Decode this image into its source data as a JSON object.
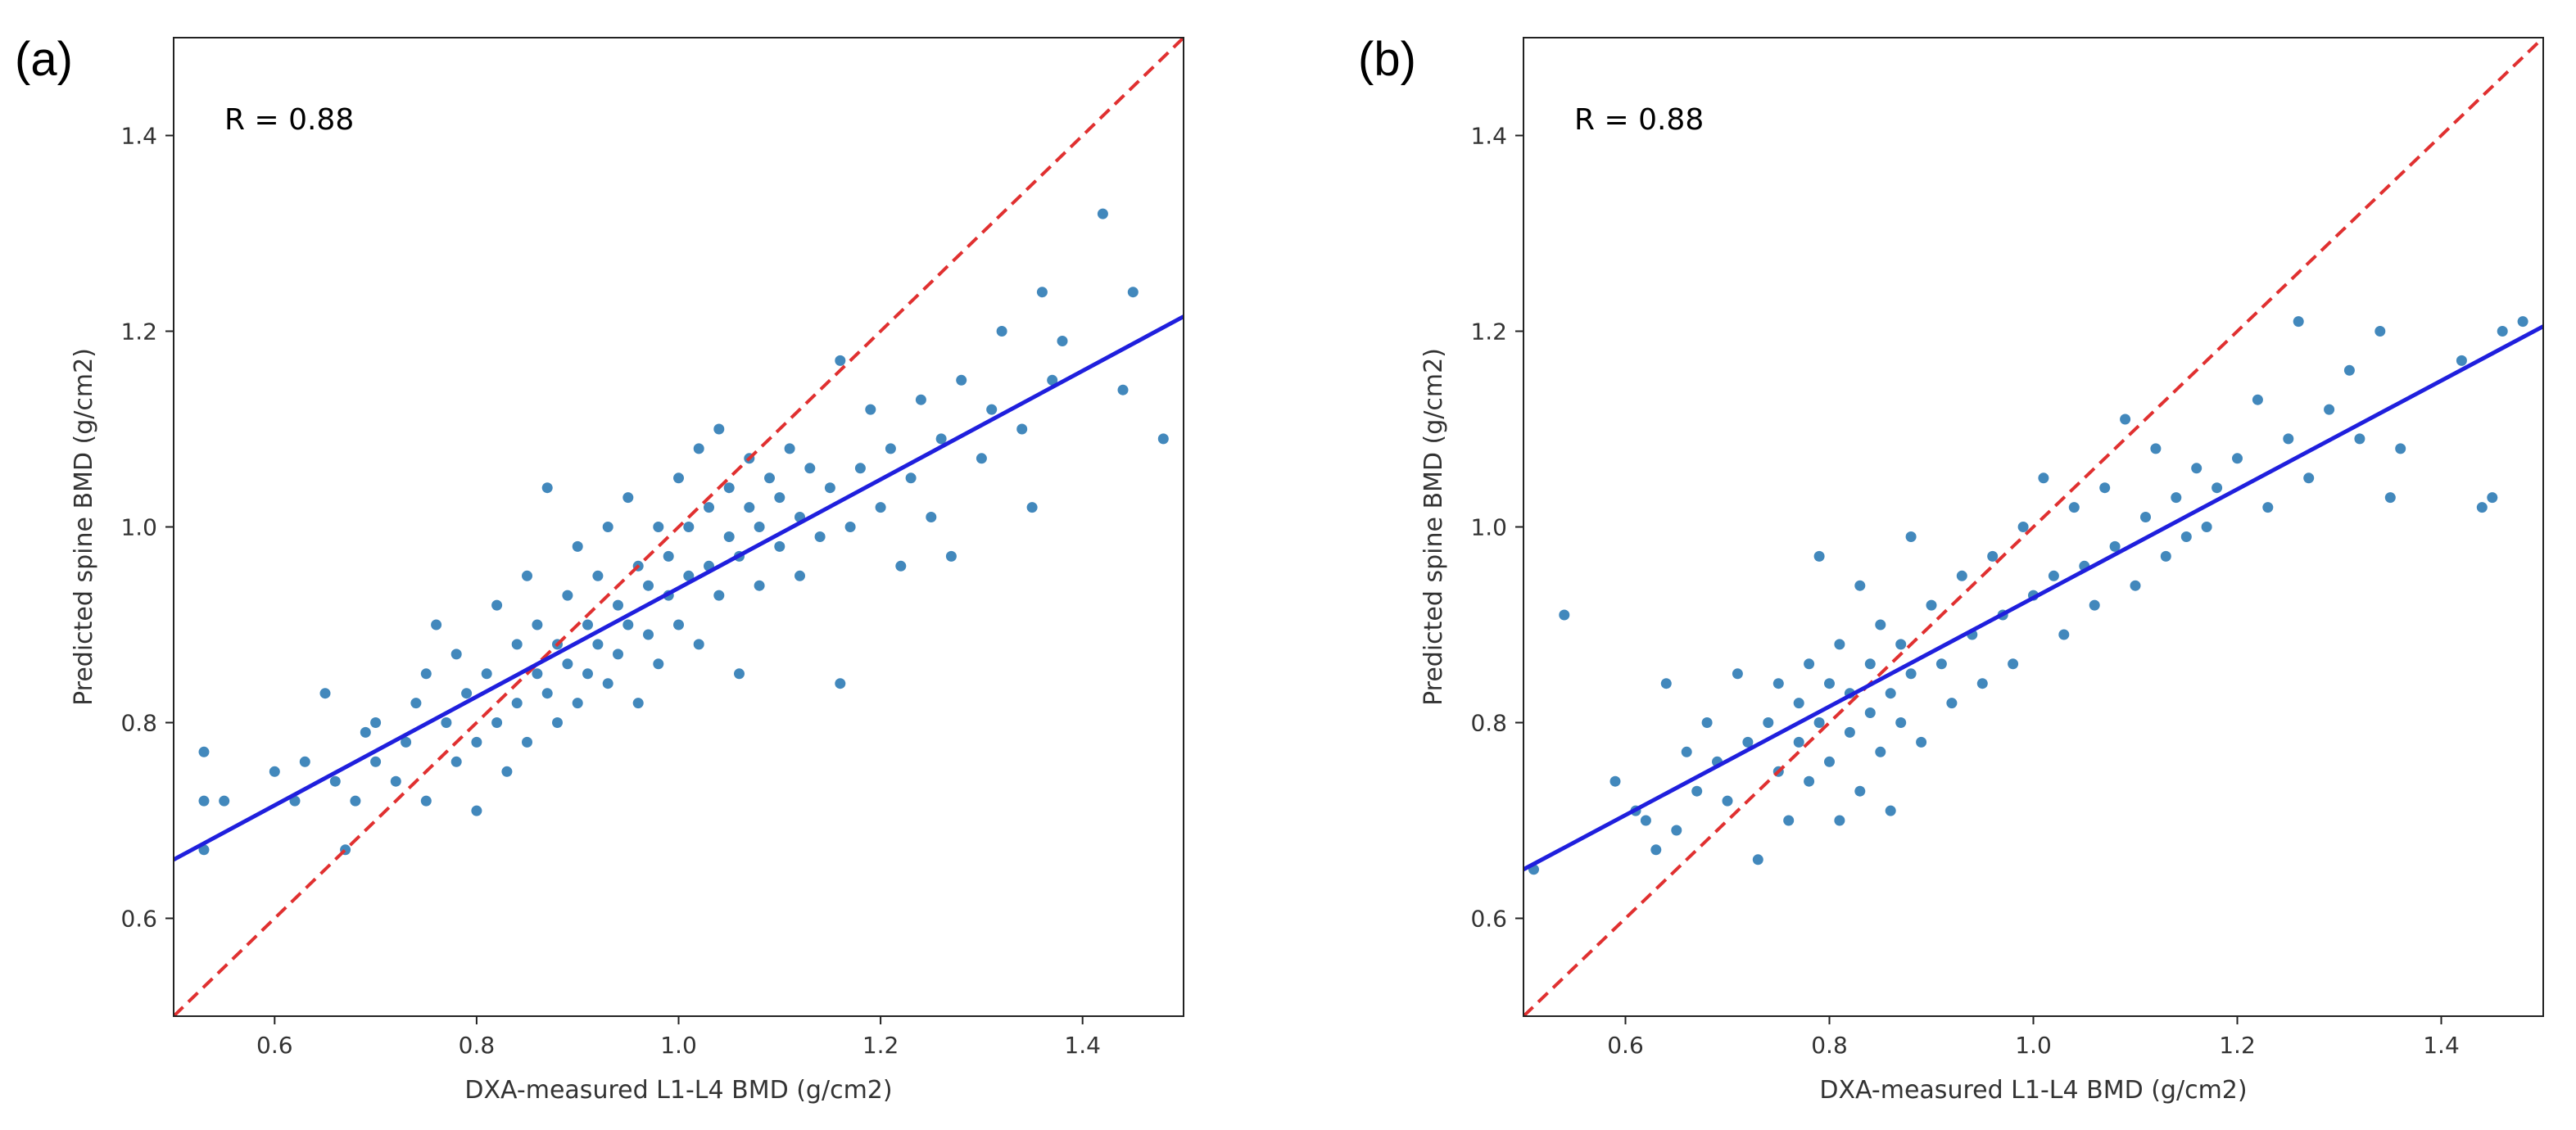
{
  "chart_data": [
    {
      "type": "scatter",
      "panel_label": "(a)",
      "xlabel": "DXA-measured L1-L4 BMD (g/cm2)",
      "ylabel": "Predicted spine BMD (g/cm2)",
      "xlim": [
        0.5,
        1.5
      ],
      "ylim": [
        0.5,
        1.5
      ],
      "xticks": [
        0.6,
        0.8,
        1.0,
        1.2,
        1.4
      ],
      "yticks": [
        0.6,
        0.8,
        1.0,
        1.2,
        1.4
      ],
      "annotation": "R = 0.88",
      "regression_line": {
        "x": [
          0.5,
          1.5
        ],
        "y": [
          0.66,
          1.215
        ],
        "color": "#1f1fdd"
      },
      "identity_line": {
        "x": [
          0.5,
          1.5
        ],
        "y": [
          0.5,
          1.5
        ],
        "color": "#e03030"
      },
      "point_color": "#2e7bb5",
      "points": [
        {
          "x": 0.53,
          "y": 0.77
        },
        {
          "x": 0.53,
          "y": 0.72
        },
        {
          "x": 0.55,
          "y": 0.72
        },
        {
          "x": 0.53,
          "y": 0.67
        },
        {
          "x": 0.6,
          "y": 0.75
        },
        {
          "x": 0.62,
          "y": 0.72
        },
        {
          "x": 0.63,
          "y": 0.76
        },
        {
          "x": 0.65,
          "y": 0.83
        },
        {
          "x": 0.66,
          "y": 0.74
        },
        {
          "x": 0.67,
          "y": 0.67
        },
        {
          "x": 0.68,
          "y": 0.72
        },
        {
          "x": 0.69,
          "y": 0.79
        },
        {
          "x": 0.7,
          "y": 0.76
        },
        {
          "x": 0.7,
          "y": 0.8
        },
        {
          "x": 0.72,
          "y": 0.74
        },
        {
          "x": 0.73,
          "y": 0.78
        },
        {
          "x": 0.74,
          "y": 0.82
        },
        {
          "x": 0.75,
          "y": 0.85
        },
        {
          "x": 0.75,
          "y": 0.72
        },
        {
          "x": 0.76,
          "y": 0.9
        },
        {
          "x": 0.77,
          "y": 0.8
        },
        {
          "x": 0.78,
          "y": 0.76
        },
        {
          "x": 0.78,
          "y": 0.87
        },
        {
          "x": 0.79,
          "y": 0.83
        },
        {
          "x": 0.8,
          "y": 0.71
        },
        {
          "x": 0.8,
          "y": 0.78
        },
        {
          "x": 0.81,
          "y": 0.85
        },
        {
          "x": 0.82,
          "y": 0.8
        },
        {
          "x": 0.82,
          "y": 0.92
        },
        {
          "x": 0.83,
          "y": 0.75
        },
        {
          "x": 0.84,
          "y": 0.88
        },
        {
          "x": 0.84,
          "y": 0.82
        },
        {
          "x": 0.85,
          "y": 0.95
        },
        {
          "x": 0.85,
          "y": 0.78
        },
        {
          "x": 0.86,
          "y": 0.85
        },
        {
          "x": 0.86,
          "y": 0.9
        },
        {
          "x": 0.87,
          "y": 0.83
        },
        {
          "x": 0.87,
          "y": 1.04
        },
        {
          "x": 0.88,
          "y": 0.88
        },
        {
          "x": 0.88,
          "y": 0.8
        },
        {
          "x": 0.89,
          "y": 0.93
        },
        {
          "x": 0.89,
          "y": 0.86
        },
        {
          "x": 0.9,
          "y": 0.98
        },
        {
          "x": 0.9,
          "y": 0.82
        },
        {
          "x": 0.91,
          "y": 0.9
        },
        {
          "x": 0.91,
          "y": 0.85
        },
        {
          "x": 0.92,
          "y": 0.95
        },
        {
          "x": 0.92,
          "y": 0.88
        },
        {
          "x": 0.93,
          "y": 1.0
        },
        {
          "x": 0.93,
          "y": 0.84
        },
        {
          "x": 0.94,
          "y": 0.92
        },
        {
          "x": 0.94,
          "y": 0.87
        },
        {
          "x": 0.95,
          "y": 1.03
        },
        {
          "x": 0.95,
          "y": 0.9
        },
        {
          "x": 0.96,
          "y": 0.96
        },
        {
          "x": 0.96,
          "y": 0.82
        },
        {
          "x": 0.97,
          "y": 0.89
        },
        {
          "x": 0.97,
          "y": 0.94
        },
        {
          "x": 0.98,
          "y": 1.0
        },
        {
          "x": 0.98,
          "y": 0.86
        },
        {
          "x": 0.99,
          "y": 0.93
        },
        {
          "x": 0.99,
          "y": 0.97
        },
        {
          "x": 1.0,
          "y": 1.05
        },
        {
          "x": 1.0,
          "y": 0.9
        },
        {
          "x": 1.01,
          "y": 0.95
        },
        {
          "x": 1.01,
          "y": 1.0
        },
        {
          "x": 1.02,
          "y": 1.08
        },
        {
          "x": 1.02,
          "y": 0.88
        },
        {
          "x": 1.03,
          "y": 0.96
        },
        {
          "x": 1.03,
          "y": 1.02
        },
        {
          "x": 1.04,
          "y": 1.1
        },
        {
          "x": 1.04,
          "y": 0.93
        },
        {
          "x": 1.05,
          "y": 0.99
        },
        {
          "x": 1.05,
          "y": 1.04
        },
        {
          "x": 1.06,
          "y": 0.85
        },
        {
          "x": 1.06,
          "y": 0.97
        },
        {
          "x": 1.07,
          "y": 1.02
        },
        {
          "x": 1.07,
          "y": 1.07
        },
        {
          "x": 1.08,
          "y": 0.94
        },
        {
          "x": 1.08,
          "y": 1.0
        },
        {
          "x": 1.09,
          "y": 1.05
        },
        {
          "x": 1.1,
          "y": 0.98
        },
        {
          "x": 1.1,
          "y": 1.03
        },
        {
          "x": 1.11,
          "y": 1.08
        },
        {
          "x": 1.12,
          "y": 0.95
        },
        {
          "x": 1.12,
          "y": 1.01
        },
        {
          "x": 1.13,
          "y": 1.06
        },
        {
          "x": 1.14,
          "y": 0.99
        },
        {
          "x": 1.15,
          "y": 1.04
        },
        {
          "x": 1.16,
          "y": 0.84
        },
        {
          "x": 1.16,
          "y": 1.17
        },
        {
          "x": 1.17,
          "y": 1.0
        },
        {
          "x": 1.18,
          "y": 1.06
        },
        {
          "x": 1.19,
          "y": 1.12
        },
        {
          "x": 1.2,
          "y": 1.02
        },
        {
          "x": 1.21,
          "y": 1.08
        },
        {
          "x": 1.22,
          "y": 0.96
        },
        {
          "x": 1.23,
          "y": 1.05
        },
        {
          "x": 1.24,
          "y": 1.13
        },
        {
          "x": 1.25,
          "y": 1.01
        },
        {
          "x": 1.26,
          "y": 1.09
        },
        {
          "x": 1.27,
          "y": 0.97
        },
        {
          "x": 1.28,
          "y": 1.15
        },
        {
          "x": 1.3,
          "y": 1.07
        },
        {
          "x": 1.31,
          "y": 1.12
        },
        {
          "x": 1.32,
          "y": 1.2
        },
        {
          "x": 1.34,
          "y": 1.1
        },
        {
          "x": 1.35,
          "y": 1.02
        },
        {
          "x": 1.36,
          "y": 1.24
        },
        {
          "x": 1.37,
          "y": 1.15
        },
        {
          "x": 1.38,
          "y": 1.19
        },
        {
          "x": 1.42,
          "y": 1.32
        },
        {
          "x": 1.44,
          "y": 1.14
        },
        {
          "x": 1.45,
          "y": 1.24
        },
        {
          "x": 1.48,
          "y": 1.09
        }
      ]
    },
    {
      "type": "scatter",
      "panel_label": "(b)",
      "xlabel": "DXA-measured L1-L4 BMD (g/cm2)",
      "ylabel": "Predicted spine BMD (g/cm2)",
      "xlim": [
        0.5,
        1.5
      ],
      "ylim": [
        0.5,
        1.5
      ],
      "xticks": [
        0.6,
        0.8,
        1.0,
        1.2,
        1.4
      ],
      "yticks": [
        0.6,
        0.8,
        1.0,
        1.2,
        1.4
      ],
      "annotation": "R = 0.88",
      "regression_line": {
        "x": [
          0.5,
          1.5
        ],
        "y": [
          0.65,
          1.205
        ],
        "color": "#1f1fdd"
      },
      "identity_line": {
        "x": [
          0.5,
          1.5
        ],
        "y": [
          0.5,
          1.5
        ],
        "color": "#e03030"
      },
      "point_color": "#2e7bb5",
      "points": [
        {
          "x": 0.51,
          "y": 0.65
        },
        {
          "x": 0.54,
          "y": 0.91
        },
        {
          "x": 0.59,
          "y": 0.74
        },
        {
          "x": 0.61,
          "y": 0.71
        },
        {
          "x": 0.62,
          "y": 0.7
        },
        {
          "x": 0.63,
          "y": 0.67
        },
        {
          "x": 0.64,
          "y": 0.84
        },
        {
          "x": 0.65,
          "y": 0.69
        },
        {
          "x": 0.66,
          "y": 0.77
        },
        {
          "x": 0.67,
          "y": 0.73
        },
        {
          "x": 0.68,
          "y": 0.8
        },
        {
          "x": 0.69,
          "y": 0.76
        },
        {
          "x": 0.7,
          "y": 0.72
        },
        {
          "x": 0.71,
          "y": 0.85
        },
        {
          "x": 0.72,
          "y": 0.78
        },
        {
          "x": 0.73,
          "y": 0.66
        },
        {
          "x": 0.74,
          "y": 0.8
        },
        {
          "x": 0.75,
          "y": 0.75
        },
        {
          "x": 0.75,
          "y": 0.84
        },
        {
          "x": 0.76,
          "y": 0.7
        },
        {
          "x": 0.77,
          "y": 0.82
        },
        {
          "x": 0.77,
          "y": 0.78
        },
        {
          "x": 0.78,
          "y": 0.86
        },
        {
          "x": 0.78,
          "y": 0.74
        },
        {
          "x": 0.79,
          "y": 0.8
        },
        {
          "x": 0.79,
          "y": 0.97
        },
        {
          "x": 0.8,
          "y": 0.76
        },
        {
          "x": 0.8,
          "y": 0.84
        },
        {
          "x": 0.81,
          "y": 0.7
        },
        {
          "x": 0.81,
          "y": 0.88
        },
        {
          "x": 0.82,
          "y": 0.79
        },
        {
          "x": 0.82,
          "y": 0.83
        },
        {
          "x": 0.83,
          "y": 0.73
        },
        {
          "x": 0.83,
          "y": 0.94
        },
        {
          "x": 0.84,
          "y": 0.81
        },
        {
          "x": 0.84,
          "y": 0.86
        },
        {
          "x": 0.85,
          "y": 0.77
        },
        {
          "x": 0.85,
          "y": 0.9
        },
        {
          "x": 0.86,
          "y": 0.83
        },
        {
          "x": 0.86,
          "y": 0.71
        },
        {
          "x": 0.87,
          "y": 0.88
        },
        {
          "x": 0.87,
          "y": 0.8
        },
        {
          "x": 0.88,
          "y": 0.99
        },
        {
          "x": 0.88,
          "y": 0.85
        },
        {
          "x": 0.89,
          "y": 0.78
        },
        {
          "x": 0.9,
          "y": 0.92
        },
        {
          "x": 0.91,
          "y": 0.86
        },
        {
          "x": 0.92,
          "y": 0.82
        },
        {
          "x": 0.93,
          "y": 0.95
        },
        {
          "x": 0.94,
          "y": 0.89
        },
        {
          "x": 0.95,
          "y": 0.84
        },
        {
          "x": 0.96,
          "y": 0.97
        },
        {
          "x": 0.97,
          "y": 0.91
        },
        {
          "x": 0.98,
          "y": 0.86
        },
        {
          "x": 0.99,
          "y": 1.0
        },
        {
          "x": 1.0,
          "y": 0.93
        },
        {
          "x": 1.01,
          "y": 1.05
        },
        {
          "x": 1.02,
          "y": 0.95
        },
        {
          "x": 1.03,
          "y": 0.89
        },
        {
          "x": 1.04,
          "y": 1.02
        },
        {
          "x": 1.05,
          "y": 0.96
        },
        {
          "x": 1.06,
          "y": 0.92
        },
        {
          "x": 1.07,
          "y": 1.04
        },
        {
          "x": 1.08,
          "y": 0.98
        },
        {
          "x": 1.09,
          "y": 1.11
        },
        {
          "x": 1.1,
          "y": 0.94
        },
        {
          "x": 1.11,
          "y": 1.01
        },
        {
          "x": 1.12,
          "y": 1.08
        },
        {
          "x": 1.13,
          "y": 0.97
        },
        {
          "x": 1.14,
          "y": 1.03
        },
        {
          "x": 1.15,
          "y": 0.99
        },
        {
          "x": 1.16,
          "y": 1.06
        },
        {
          "x": 1.17,
          "y": 1.0
        },
        {
          "x": 1.18,
          "y": 1.04
        },
        {
          "x": 1.2,
          "y": 1.07
        },
        {
          "x": 1.22,
          "y": 1.13
        },
        {
          "x": 1.23,
          "y": 1.02
        },
        {
          "x": 1.25,
          "y": 1.09
        },
        {
          "x": 1.26,
          "y": 1.21
        },
        {
          "x": 1.27,
          "y": 1.05
        },
        {
          "x": 1.29,
          "y": 1.12
        },
        {
          "x": 1.31,
          "y": 1.16
        },
        {
          "x": 1.32,
          "y": 1.09
        },
        {
          "x": 1.34,
          "y": 1.2
        },
        {
          "x": 1.35,
          "y": 1.03
        },
        {
          "x": 1.36,
          "y": 1.08
        },
        {
          "x": 1.42,
          "y": 1.17
        },
        {
          "x": 1.44,
          "y": 1.02
        },
        {
          "x": 1.45,
          "y": 1.03
        },
        {
          "x": 1.46,
          "y": 1.2
        },
        {
          "x": 1.48,
          "y": 1.21
        }
      ]
    }
  ]
}
